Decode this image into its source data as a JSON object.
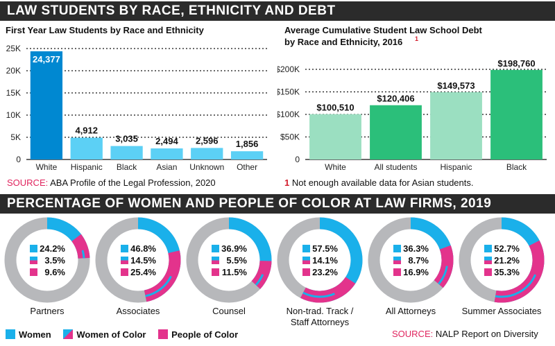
{
  "header1": "LAW STUDENTS BY RACE, ETHNICITY AND DEBT",
  "header2": "PERCENTAGE OF WOMEN AND PEOPLE OF COLOR AT LAW FIRMS, 2019",
  "colors": {
    "women": "#1ab0ea",
    "women_of_color": "#1ab0ea",
    "people_of_color": "#e3338c",
    "ring_bg": "#b7b8bb",
    "enroll_dark": "#0088d1",
    "enroll_light": "#5cd0f5",
    "debt_light": "#9bdfc1",
    "debt_dark": "#2bbf7a"
  },
  "left_source": {
    "key": "SOURCE:",
    "text": "ABA Profile of the Legal Profession, 2020"
  },
  "right_footnote": {
    "num": "1",
    "text": "Not enough available data for Asian students."
  },
  "bottom_source": {
    "key": "SOURCE:",
    "text": "NALP Report on Diversity"
  },
  "legend": [
    {
      "label": "Women",
      "icon": "women-swatch"
    },
    {
      "label": "Women of Color",
      "icon": "women-of-color-swatch"
    },
    {
      "label": "People of Color",
      "icon": "people-of-color-swatch"
    }
  ],
  "chart_data": [
    {
      "type": "bar",
      "title": "First Year Law Students by Race and Ethnicity",
      "categories": [
        "White",
        "Hispanic",
        "Black",
        "Asian",
        "Unknown",
        "Other"
      ],
      "values": [
        24377,
        4912,
        3035,
        2494,
        2596,
        1856
      ],
      "data_labels": [
        "24,377",
        "4,912",
        "3,035",
        "2,494",
        "2,596",
        "1,856"
      ],
      "yticks": [
        "0",
        "5K",
        "10K",
        "15K",
        "20K",
        "25K"
      ],
      "ylim": [
        0,
        25000
      ],
      "grid": true
    },
    {
      "type": "bar",
      "title": "Average Cumulative Student Law School Debt by Race and Ethnicity, 2016",
      "title_lines": [
        "Average Cumulative Student Law School Debt",
        "by Race and Ethnicity, 2016"
      ],
      "title_footnote": "1",
      "categories": [
        "White",
        "All students",
        "Hispanic",
        "Black"
      ],
      "values": [
        100510,
        120406,
        149573,
        198760
      ],
      "data_labels": [
        "$100,510",
        "$120,406",
        "$149,573",
        "$198,760"
      ],
      "yticks": [
        "0",
        "$50K",
        "$100K",
        "$150K",
        "$200K"
      ],
      "ylim": [
        0,
        200000
      ],
      "grid": true
    },
    {
      "type": "pie",
      "style": "donut",
      "series_names": [
        "Women",
        "Women of Color",
        "People of Color"
      ],
      "groups": [
        {
          "label": "Partners",
          "women": 24.2,
          "women_of_color": 3.5,
          "people_of_color": 9.6,
          "labels": [
            "24.2%",
            "3.5%",
            "9.6%"
          ]
        },
        {
          "label": "Associates",
          "women": 46.8,
          "women_of_color": 14.5,
          "people_of_color": 25.4,
          "labels": [
            "46.8%",
            "14.5%",
            "25.4%"
          ]
        },
        {
          "label": "Counsel",
          "women": 36.9,
          "women_of_color": 5.5,
          "people_of_color": 11.5,
          "labels": [
            "36.9%",
            "5.5%",
            "11.5%"
          ]
        },
        {
          "label": "Non-trad. Track / Staff Attorneys",
          "label_lines": [
            "Non-trad. Track /",
            "Staff Attorneys"
          ],
          "women": 57.5,
          "women_of_color": 14.1,
          "people_of_color": 23.2,
          "labels": [
            "57.5%",
            "14.1%",
            "23.2%"
          ]
        },
        {
          "label": "All Attorneys",
          "women": 36.3,
          "women_of_color": 8.7,
          "people_of_color": 16.9,
          "labels": [
            "36.3%",
            "8.7%",
            "16.9%"
          ]
        },
        {
          "label": "Summer Associates",
          "women": 52.7,
          "women_of_color": 21.2,
          "people_of_color": 35.3,
          "labels": [
            "52.7%",
            "21.2%",
            "35.3%"
          ]
        }
      ]
    }
  ]
}
